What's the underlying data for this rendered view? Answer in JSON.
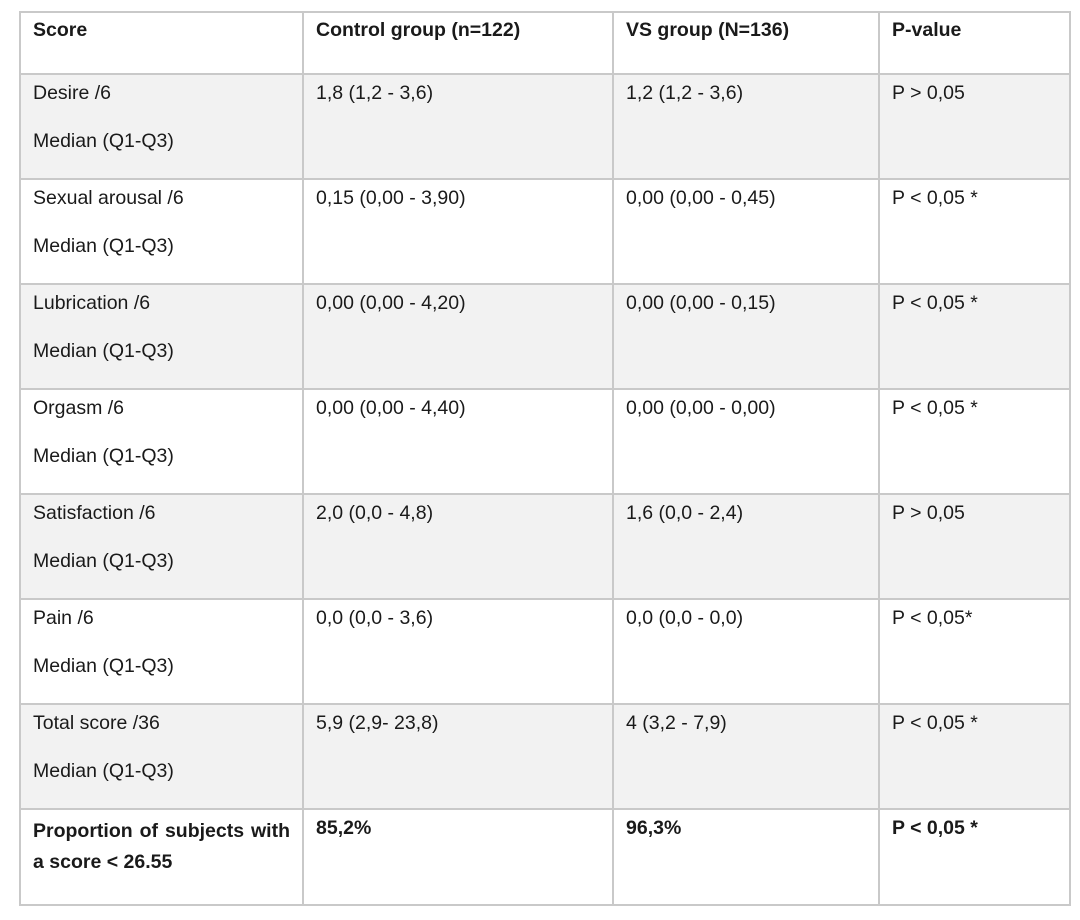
{
  "table": {
    "headers": [
      "Score",
      "Control group (n=122)",
      "VS group (N=136)",
      "P-value"
    ],
    "rows": [
      {
        "label": "Desire /6",
        "sublabel": "Median (Q1-Q3)",
        "control": "1,8 (1,2 - 3,6)",
        "vs": "1,2 (1,2 - 3,6)",
        "p": "P > 0,05"
      },
      {
        "label": "Sexual arousal /6",
        "sublabel": "Median (Q1-Q3)",
        "control": "0,15 (0,00 - 3,90)",
        "vs": "0,00 (0,00 - 0,45)",
        "p": "P < 0,05 *"
      },
      {
        "label": "Lubrication /6",
        "sublabel": "Median (Q1-Q3)",
        "control": "0,00 (0,00 - 4,20)",
        "vs": "0,00 (0,00 - 0,15)",
        "p": "P < 0,05 *"
      },
      {
        "label": "Orgasm /6",
        "sublabel": "Median (Q1-Q3)",
        "control": "0,00 (0,00 - 4,40)",
        "vs": "0,00 (0,00 - 0,00)",
        "p": "P < 0,05 *"
      },
      {
        "label": "Satisfaction /6",
        "sublabel": "Median (Q1-Q3)",
        "control": "2,0 (0,0 - 4,8)",
        "vs": "1,6 (0,0 - 2,4)",
        "p": "P > 0,05"
      },
      {
        "label": "Pain /6",
        "sublabel": "Median (Q1-Q3)",
        "control": "0,0 (0,0 - 3,6)",
        "vs": "0,0 (0,0 - 0,0)",
        "p": "P < 0,05*"
      },
      {
        "label": "Total score /36",
        "sublabel": "Median (Q1-Q3)",
        "control": "5,9 (2,9- 23,8)",
        "vs": "4 (3,2 - 7,9)",
        "p": "P < 0,05 *"
      }
    ],
    "final_row": {
      "label": "Proportion of subjects with a score < 26.55",
      "control": "85,2%",
      "vs": "96,3%",
      "p": "P < 0,05 *"
    }
  }
}
